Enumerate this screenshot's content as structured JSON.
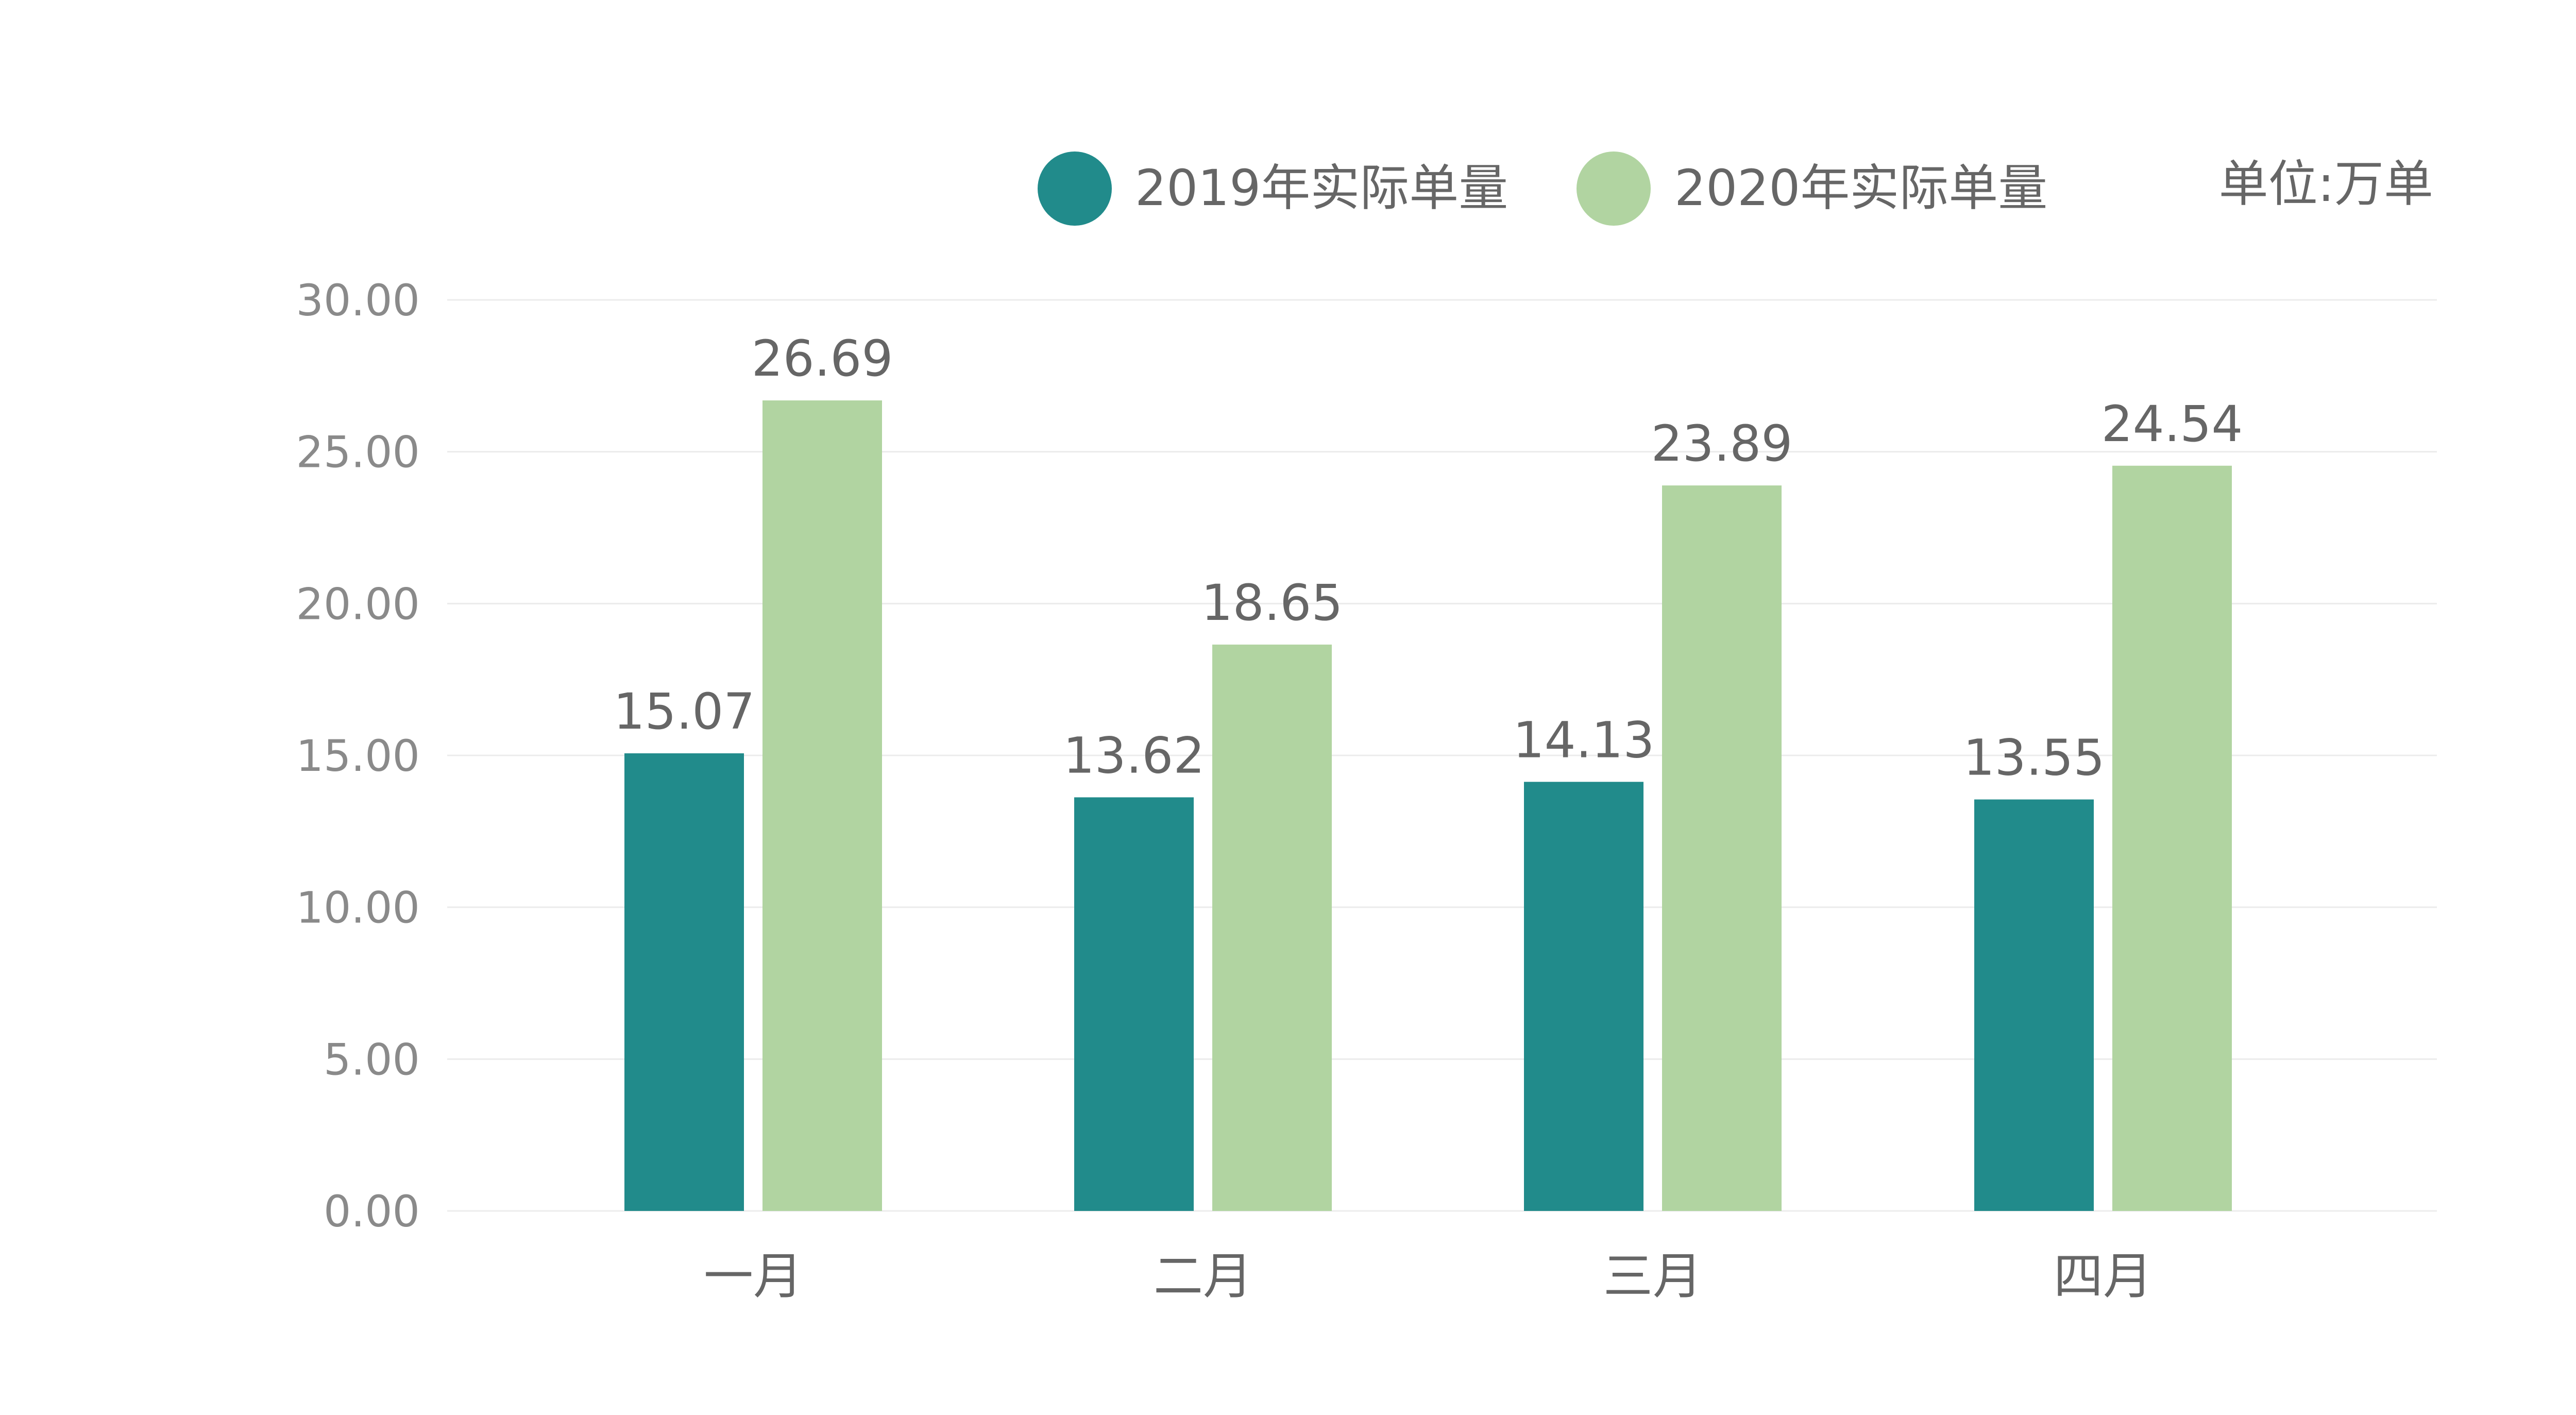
{
  "chart_data": {
    "type": "bar",
    "categories": [
      "一月",
      "二月",
      "三月",
      "四月"
    ],
    "series": [
      {
        "name": "2019年实际单量",
        "values": [
          15.07,
          13.62,
          14.13,
          13.55
        ],
        "color": "#218b8b"
      },
      {
        "name": "2020年实际单量",
        "values": [
          26.69,
          18.65,
          23.89,
          24.54
        ],
        "color": "#b1d4a1"
      }
    ],
    "unit_label": "单位:万单",
    "y_ticks": [
      "0.00",
      "5.00",
      "10.00",
      "15.00",
      "20.00",
      "25.00",
      "30.00"
    ],
    "ylim": [
      0,
      30
    ],
    "grid": true,
    "legend_position": "top-right",
    "colors": {
      "grid": "#ececec",
      "tick_text": "#8a8a8a",
      "label_text": "#666666"
    }
  }
}
